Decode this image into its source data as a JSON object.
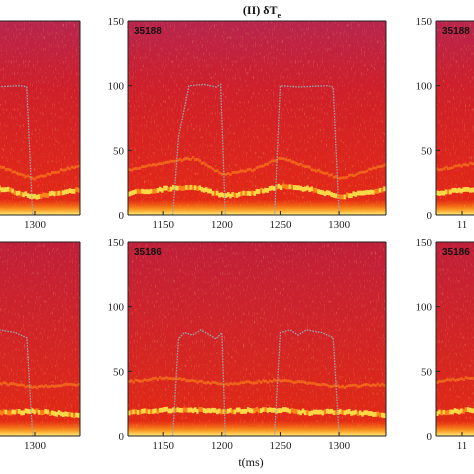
{
  "figure_title": "(II) δT",
  "figure_title_subscript": "e",
  "colors": {
    "background": "#d91e1e",
    "background_top": "#b3204a",
    "mode_bright": "#ffe94a",
    "mode_mid": "#ff8c1a",
    "trace": "#9aa4ad",
    "tick_text": "#222222"
  },
  "panels": [
    {
      "id": "top-left",
      "shot_label": "",
      "ytick_labels": [],
      "xtick_labels": [
        "1300"
      ]
    },
    {
      "id": "top-center",
      "shot_label": "35188",
      "ytick_labels": [
        "0",
        "50",
        "100",
        "150"
      ],
      "xtick_labels": [
        "1150",
        "1200",
        "1250",
        "1300"
      ]
    },
    {
      "id": "top-right",
      "shot_label": "35188",
      "ytick_labels": [
        "0",
        "50",
        "100",
        "150"
      ],
      "xtick_labels": [
        "11"
      ]
    },
    {
      "id": "bottom-left",
      "shot_label": "",
      "ytick_labels": [],
      "xtick_labels": [
        "1300"
      ]
    },
    {
      "id": "bottom-center",
      "shot_label": "35186",
      "ytick_labels": [
        "0",
        "50",
        "100",
        "150"
      ],
      "xtick_labels": [
        "1150",
        "1200",
        "1250",
        "1300"
      ]
    },
    {
      "id": "bottom-right",
      "shot_label": "35186",
      "ytick_labels": [
        "0",
        "50",
        "100",
        "150"
      ],
      "xtick_labels": [
        "11"
      ]
    }
  ],
  "xlabel": "t(ms)",
  "chart_data": [
    {
      "type": "heatmap",
      "title": "(II) δTe",
      "shot": "35188",
      "xlabel": "t(ms)",
      "ylabel": "",
      "xlim": [
        1120,
        1340
      ],
      "ylim": [
        0,
        150
      ],
      "xticks": [
        1150,
        1200,
        1250,
        1300
      ],
      "yticks": [
        0,
        50,
        100,
        150
      ],
      "modes": [
        {
          "x": [
            1120,
            1150,
            1175,
            1200,
            1225,
            1250,
            1275,
            1300,
            1340
          ],
          "y": [
            17,
            20,
            22,
            15,
            17,
            22,
            20,
            14,
            20
          ]
        },
        {
          "x": [
            1120,
            1150,
            1175,
            1200,
            1225,
            1250,
            1300,
            1340
          ],
          "y": [
            35,
            40,
            44,
            31,
            35,
            44,
            28,
            39
          ]
        }
      ],
      "trace": {
        "x": [
          1120,
          1158,
          1163,
          1172,
          1185,
          1195,
          1199,
          1203,
          1240,
          1245,
          1250,
          1265,
          1290,
          1295,
          1300,
          1340
        ],
        "y": [
          0,
          0,
          60,
          100,
          101,
          99,
          101,
          0,
          0,
          0,
          100,
          99,
          100,
          99,
          0,
          0
        ]
      }
    },
    {
      "type": "heatmap",
      "shot": "35186",
      "xlabel": "t(ms)",
      "ylabel": "",
      "xlim": [
        1120,
        1340
      ],
      "ylim": [
        0,
        150
      ],
      "xticks": [
        1150,
        1200,
        1250,
        1300
      ],
      "yticks": [
        0,
        50,
        100,
        150
      ],
      "modes": [
        {
          "x": [
            1120,
            1150,
            1175,
            1200,
            1225,
            1250,
            1275,
            1300,
            1340
          ],
          "y": [
            18,
            20,
            20,
            19,
            20,
            20,
            18,
            19,
            16
          ]
        },
        {
          "x": [
            1120,
            1150,
            1200,
            1250,
            1300,
            1340
          ],
          "y": [
            42,
            45,
            40,
            43,
            38,
            40
          ]
        }
      ],
      "trace": {
        "x": [
          1120,
          1158,
          1163,
          1168,
          1175,
          1182,
          1190,
          1195,
          1200,
          1203,
          1240,
          1245,
          1250,
          1258,
          1265,
          1272,
          1285,
          1295,
          1300,
          1340
        ],
        "y": [
          0,
          0,
          75,
          80,
          78,
          82,
          78,
          75,
          80,
          0,
          0,
          0,
          80,
          82,
          78,
          82,
          80,
          76,
          0,
          0
        ]
      }
    }
  ]
}
